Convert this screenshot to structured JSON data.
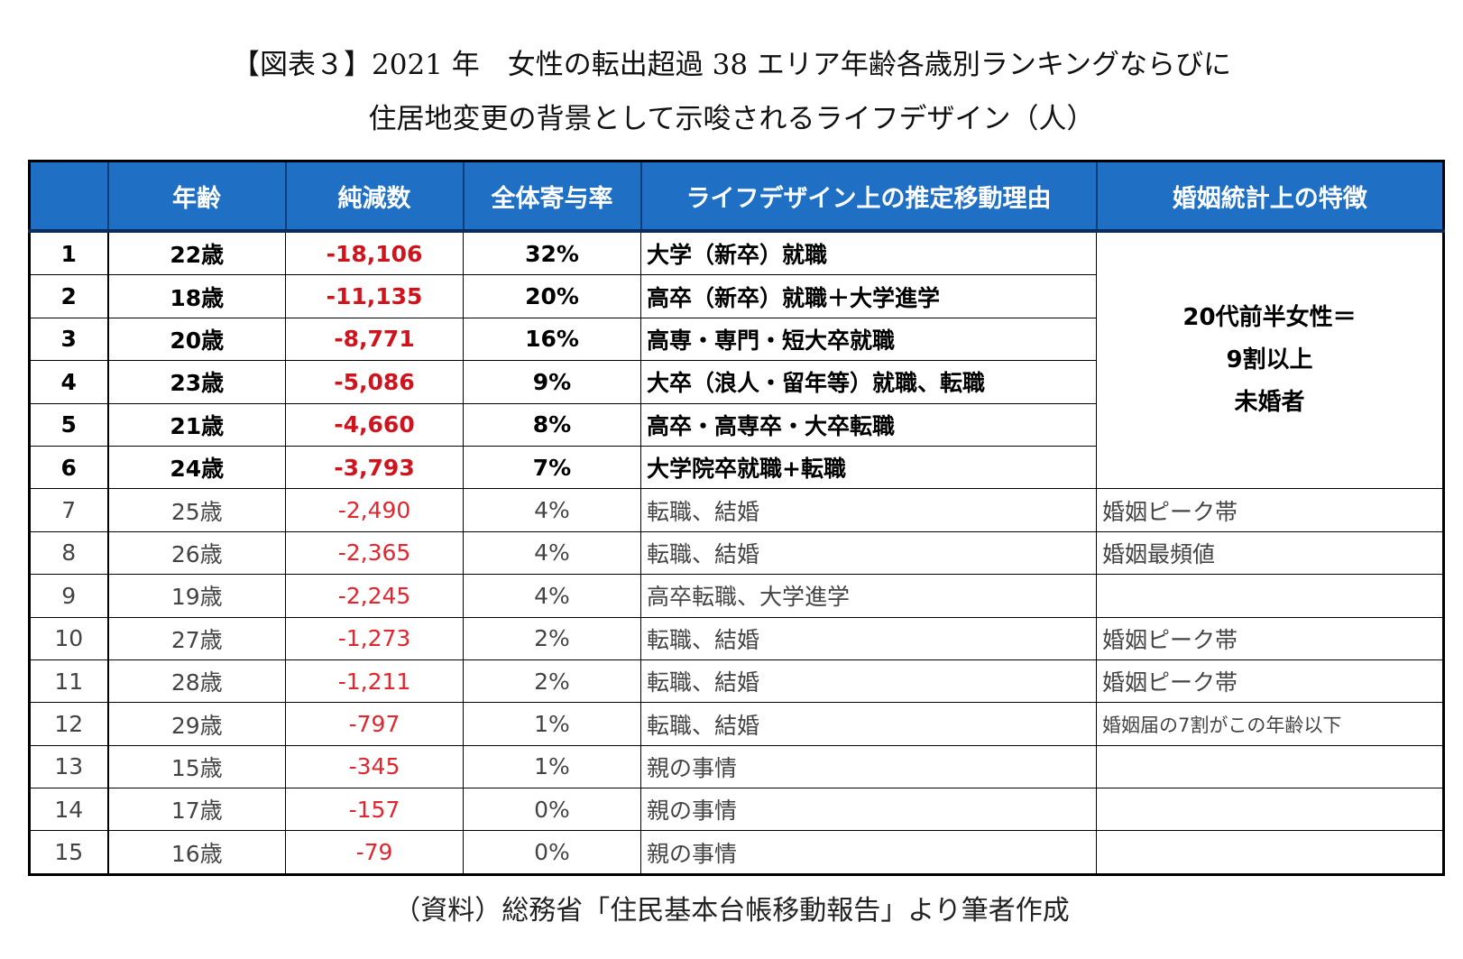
{
  "title": {
    "line1": "【図表３】2021 年　女性の転出超過 38 エリア年齢各歳別ランキングならびに",
    "line2": "住居地変更の背景として示唆されるライフデザイン（人）"
  },
  "table": {
    "headers": [
      "",
      "年齢",
      "純減数",
      "全体寄与率",
      "ライフデザイン上の推定移動理由",
      "婚姻統計上の特徴"
    ],
    "merged_note": {
      "line1": "20代前半女性＝",
      "line2": "9割以上",
      "line3": "未婚者"
    },
    "rows": [
      {
        "rank": "1",
        "age": "22歳",
        "net": "-18,106",
        "share": "32%",
        "reason": "大学（新卒）就職",
        "feature": ""
      },
      {
        "rank": "2",
        "age": "18歳",
        "net": "-11,135",
        "share": "20%",
        "reason": "高卒（新卒）就職＋大学進学",
        "feature": ""
      },
      {
        "rank": "3",
        "age": "20歳",
        "net": "-8,771",
        "share": "16%",
        "reason": "高専・専門・短大卒就職",
        "feature": ""
      },
      {
        "rank": "4",
        "age": "23歳",
        "net": "-5,086",
        "share": "9%",
        "reason": "大卒（浪人・留年等）就職、転職",
        "feature": ""
      },
      {
        "rank": "5",
        "age": "21歳",
        "net": "-4,660",
        "share": "8%",
        "reason": "高卒・高専卒・大卒転職",
        "feature": ""
      },
      {
        "rank": "6",
        "age": "24歳",
        "net": "-3,793",
        "share": "7%",
        "reason": "大学院卒就職+転職",
        "feature": ""
      },
      {
        "rank": "7",
        "age": "25歳",
        "net": "-2,490",
        "share": "4%",
        "reason": "転職、結婚",
        "feature": "婚姻ピーク帯"
      },
      {
        "rank": "8",
        "age": "26歳",
        "net": "-2,365",
        "share": "4%",
        "reason": "転職、結婚",
        "feature": "婚姻最頻値"
      },
      {
        "rank": "9",
        "age": "19歳",
        "net": "-2,245",
        "share": "4%",
        "reason": "高卒転職、大学進学",
        "feature": ""
      },
      {
        "rank": "10",
        "age": "27歳",
        "net": "-1,273",
        "share": "2%",
        "reason": "転職、結婚",
        "feature": "婚姻ピーク帯"
      },
      {
        "rank": "11",
        "age": "28歳",
        "net": "-1,211",
        "share": "2%",
        "reason": "転職、結婚",
        "feature": "婚姻ピーク帯"
      },
      {
        "rank": "12",
        "age": "29歳",
        "net": "-797",
        "share": "1%",
        "reason": "転職、結婚",
        "feature": "婚姻届の7割がこの年齢以下"
      },
      {
        "rank": "13",
        "age": "15歳",
        "net": "-345",
        "share": "1%",
        "reason": "親の事情",
        "feature": ""
      },
      {
        "rank": "14",
        "age": "17歳",
        "net": "-157",
        "share": "0%",
        "reason": "親の事情",
        "feature": ""
      },
      {
        "rank": "15",
        "age": "16歳",
        "net": "-79",
        "share": "0%",
        "reason": "親の事情",
        "feature": ""
      }
    ]
  },
  "source": "（資料）総務省「住民基本台帳移動報告」より筆者作成",
  "colors": {
    "header_bg": "#1f6fc5",
    "negative": "#d0141e"
  }
}
